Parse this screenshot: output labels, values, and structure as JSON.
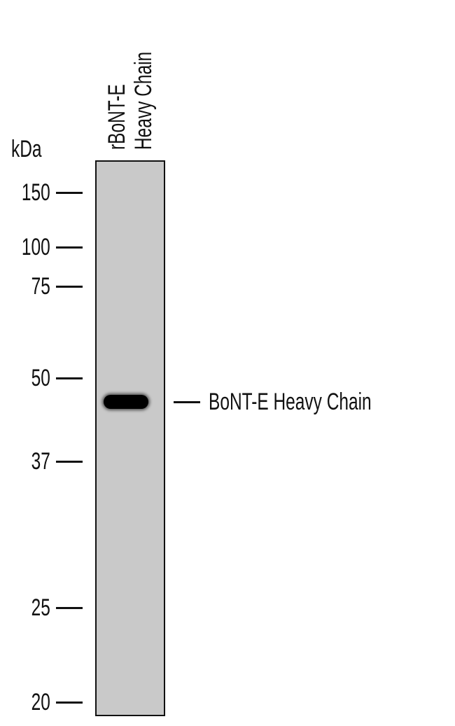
{
  "unit_label": "kDa",
  "lane_labels": [
    "rBoNT-E",
    "Heavy Chain"
  ],
  "markers": [
    "150",
    "100",
    "75",
    "50",
    "37",
    "25",
    "20"
  ],
  "band_label": "BoNT-E Heavy Chain",
  "colors": {
    "membrane": "#c9c9c9",
    "band": "#000000"
  }
}
